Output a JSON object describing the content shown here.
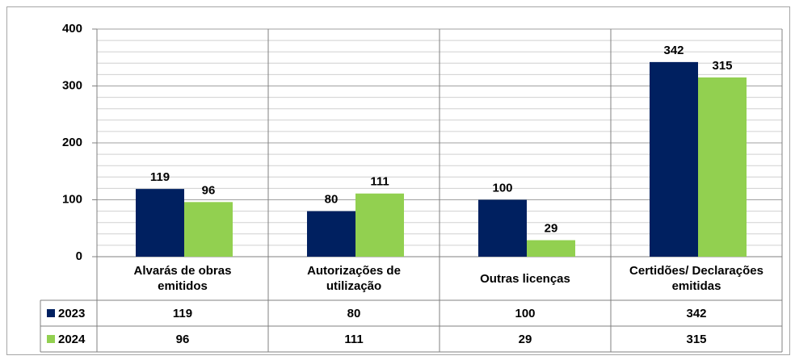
{
  "chart_data": {
    "type": "bar",
    "categories": [
      "Alvarás de obras emitidos",
      "Autorizações de utilização",
      "Outras licenças",
      "Certidões/ Declarações emitidas"
    ],
    "series": [
      {
        "name": "2023",
        "color": "#002060",
        "values": [
          119,
          80,
          100,
          342
        ]
      },
      {
        "name": "2024",
        "color": "#92d050",
        "values": [
          96,
          111,
          29,
          315
        ]
      }
    ],
    "ylim": [
      0,
      400
    ],
    "yticks": [
      0,
      100,
      200,
      300,
      400
    ],
    "grid": true,
    "data_table": true
  }
}
